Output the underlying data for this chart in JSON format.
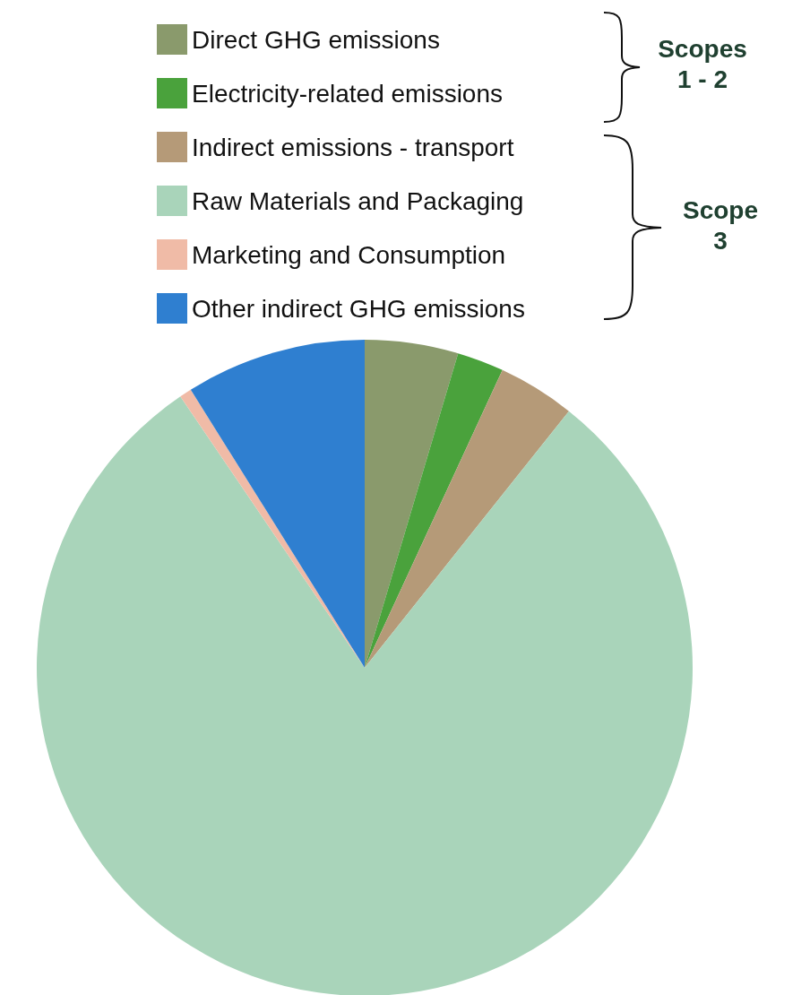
{
  "chart_data": {
    "type": "pie",
    "categories": [
      "Direct GHG emissions",
      "Electricity-related emissions",
      "Indirect emissions - transport",
      "Raw Materials and Packaging",
      "Marketing and Consumption",
      "Other indirect GHG emissions"
    ],
    "values": [
      4.6,
      2.3,
      3.8,
      79.8,
      0.6,
      8.9
    ],
    "colors": [
      "#8a9a6c",
      "#4aa23c",
      "#b59a78",
      "#a9d4ba",
      "#f0bba7",
      "#2f7fd0"
    ],
    "legend": "top",
    "annotations": [
      "Scopes 1 - 2",
      "Scope 3"
    ]
  }
}
